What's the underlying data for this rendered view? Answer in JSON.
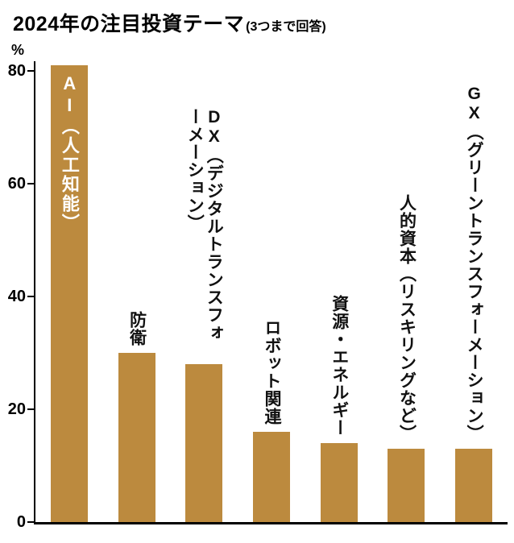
{
  "chart_data": {
    "type": "bar",
    "title": "2024年の注目投資テーマ",
    "subtitle": "(3つまで回答)",
    "ylabel": "%",
    "ylim": [
      0,
      81
    ],
    "yticks": [
      0,
      20,
      40,
      60,
      80
    ],
    "grid": false,
    "legend": false,
    "bar_color": "#bc8a3e",
    "bars": [
      {
        "label": "AI（人工知能）",
        "value": 81,
        "label_position": "inside",
        "label_color": "#ffffff"
      },
      {
        "label": "防衛",
        "value": 30,
        "label_position": "above"
      },
      {
        "label": "DX（デジタルトランスフォーメーション）",
        "value": 28,
        "label_position": "above",
        "label_wrap_height": 310
      },
      {
        "label": "ロボット関連",
        "value": 16,
        "label_position": "above"
      },
      {
        "label": "資源・エネルギー",
        "value": 14,
        "label_position": "above"
      },
      {
        "label": "人的資本（リスキリングなど）",
        "value": 13,
        "label_position": "above"
      },
      {
        "label": "GX（グリーントランスフォーメーション）",
        "value": 13,
        "label_position": "above"
      }
    ]
  }
}
